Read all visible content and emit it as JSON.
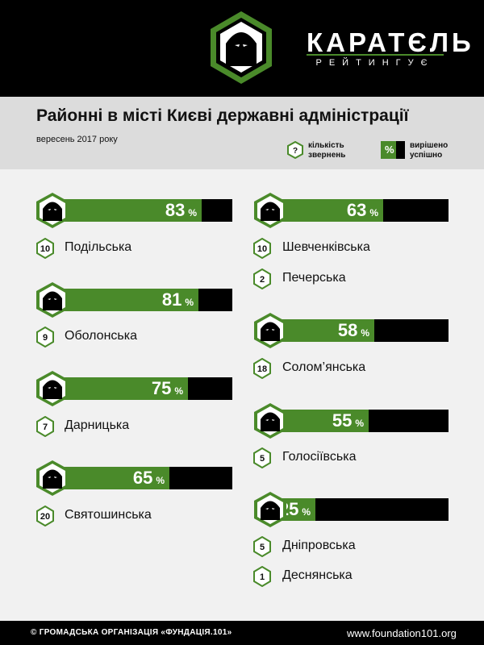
{
  "brand": {
    "name": "КАРАТЄЛЬ",
    "tagline": "РЕЙТИНГУЄ"
  },
  "header": {
    "title": "Районні в місті Києві державні адміністрації",
    "date": "вересень 2017 року"
  },
  "legend": {
    "count_symbol": "?",
    "count_label_1": "кількість",
    "count_label_2": "звернень",
    "pct_symbol": "%",
    "pct_label_1": "вирішено",
    "pct_label_2": "успішно"
  },
  "colors": {
    "green": "#4a8a2a",
    "black": "#000000",
    "background": "#f1f1f1"
  },
  "chart_data": {
    "type": "bar",
    "title": "Районні в місті Києві державні адміністрації",
    "subtitle": "вересень 2017 року",
    "unit": "%",
    "categories": [
      "Подільська",
      "Оболонська",
      "Дарницька",
      "Святошинська",
      "Шевченківська",
      "Печерська",
      "Солом’янська",
      "Голосіївська",
      "Дніпровська",
      "Деснянська"
    ],
    "series": [
      {
        "name": "вирішено успішно",
        "values": [
          83,
          81,
          75,
          65,
          63,
          null,
          58,
          55,
          25,
          null
        ]
      },
      {
        "name": "кількість звернень",
        "values": [
          10,
          9,
          7,
          20,
          10,
          2,
          18,
          5,
          5,
          1
        ]
      }
    ],
    "ylim": [
      0,
      100
    ]
  },
  "footer": {
    "left": "© ГРОМАДСЬКА ОРГАНІЗАЦІЯ «ФУНДАЦІЯ.101»",
    "right": "www.foundation101.org"
  }
}
